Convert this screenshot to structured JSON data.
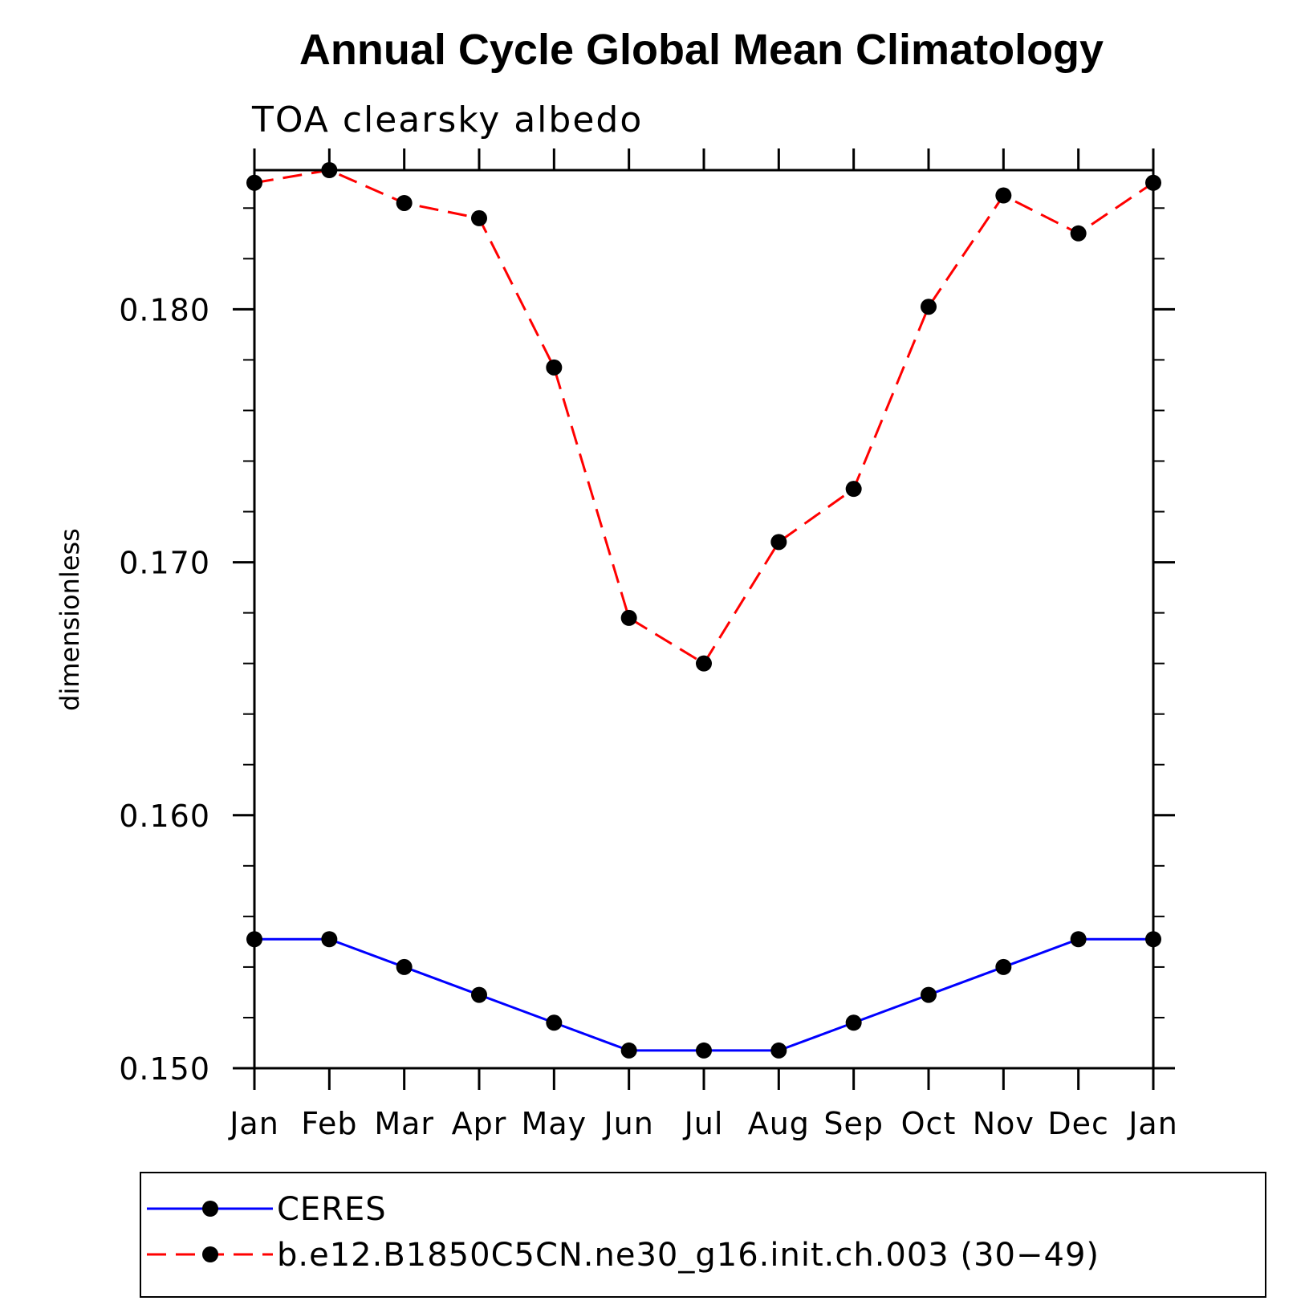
{
  "chart_data": {
    "type": "line",
    "title": "Annual Cycle Global Mean Climatology",
    "subtitle": "TOA clearsky albedo",
    "xlabel": "",
    "ylabel": "dimensionless",
    "categories": [
      "Jan",
      "Feb",
      "Mar",
      "Apr",
      "May",
      "Jun",
      "Jul",
      "Aug",
      "Sep",
      "Oct",
      "Nov",
      "Dec",
      "Jan"
    ],
    "ylim": [
      0.15,
      0.1855
    ],
    "yticks": [
      0.15,
      0.16,
      0.17,
      0.18
    ],
    "ytick_labels": [
      "0.150",
      "0.160",
      "0.170",
      "0.180"
    ],
    "yminor_step": 0.002,
    "grid": false,
    "legend_position": "bottom",
    "series": [
      {
        "name": "CERES",
        "color": "#0000ff",
        "line_style": "solid",
        "marker": "filled-circle",
        "values": [
          0.1551,
          0.1551,
          0.154,
          0.1529,
          0.1518,
          0.1507,
          0.1507,
          0.1507,
          0.1518,
          0.1529,
          0.154,
          0.1551,
          0.1551
        ]
      },
      {
        "name": "b.e12.B1850C5CN.ne30_g16.init.ch.003 (30−49)",
        "color": "#ff0000",
        "line_style": "dashed",
        "marker": "filled-circle",
        "values": [
          0.185,
          0.1855,
          0.1842,
          0.1836,
          0.1777,
          0.1678,
          0.166,
          0.1708,
          0.1729,
          0.1801,
          0.1845,
          0.183,
          0.185
        ]
      }
    ]
  }
}
